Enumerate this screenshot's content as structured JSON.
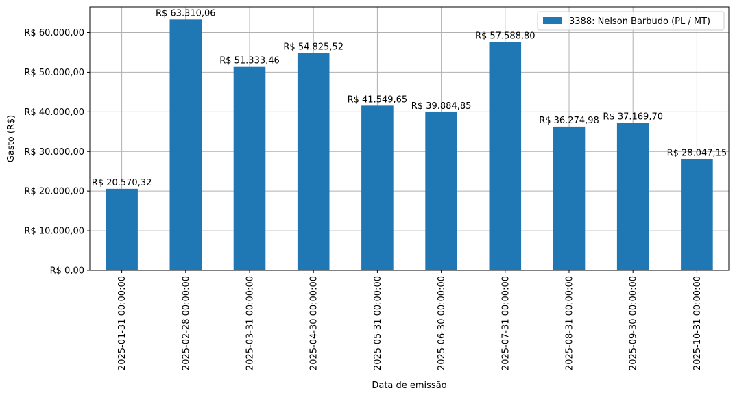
{
  "chart_data": {
    "type": "bar",
    "categories": [
      "2025-01-31 00:00:00",
      "2025-02-28 00:00:00",
      "2025-03-31 00:00:00",
      "2025-04-30 00:00:00",
      "2025-05-31 00:00:00",
      "2025-06-30 00:00:00",
      "2025-07-31 00:00:00",
      "2025-08-31 00:00:00",
      "2025-09-30 00:00:00",
      "2025-10-31 00:00:00"
    ],
    "series": [
      {
        "name": "3388: Nelson Barbudo (PL / MT)",
        "color": "#1f77b4",
        "values": [
          20570.32,
          63310.06,
          51333.46,
          54825.52,
          41549.65,
          39884.85,
          57588.8,
          36274.98,
          37169.7,
          28047.15
        ]
      }
    ],
    "data_labels": [
      "R$ 20.570,32",
      "R$ 63.310,06",
      "R$ 51.333,46",
      "R$ 54.825,52",
      "R$ 41.549,65",
      "R$ 39.884,85",
      "R$ 57.588,80",
      "R$ 36.274,98",
      "R$ 37.169,70",
      "R$ 28.047,15"
    ],
    "yticks": [
      0,
      10000,
      20000,
      30000,
      40000,
      50000,
      60000
    ],
    "ytick_labels": [
      "R$ 0,00",
      "R$ 10.000,00",
      "R$ 20.000,00",
      "R$ 30.000,00",
      "R$ 40.000,00",
      "R$ 50.000,00",
      "R$ 60.000,00"
    ],
    "xlabel": "Data de emissão",
    "ylabel": "Gasto (R$)",
    "ylim": [
      0,
      66476
    ],
    "grid": true,
    "legend_position": "top-right"
  }
}
